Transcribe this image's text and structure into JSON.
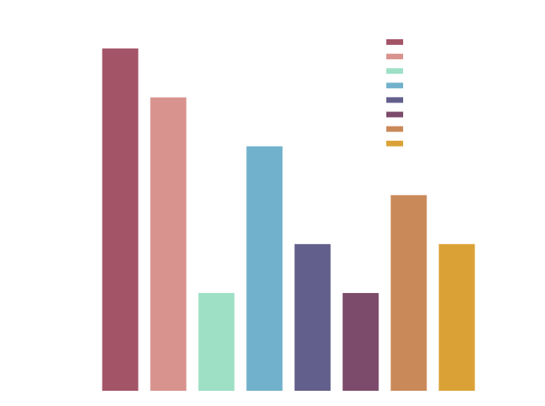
{
  "chart_data": {
    "type": "bar",
    "categories": [
      "",
      "",
      "",
      "",
      "",
      "",
      "",
      ""
    ],
    "values": [
      7,
      6,
      2,
      5,
      3,
      2,
      4,
      3
    ],
    "colors": [
      "#a45467",
      "#d9938f",
      "#9de0c6",
      "#72b1cb",
      "#635f8c",
      "#7c4a6a",
      "#ca8959",
      "#daa236"
    ],
    "ylim": [
      0,
      7.5
    ],
    "title": "",
    "xlabel": "",
    "ylabel": "",
    "grid": false,
    "legend_placement": "top-right"
  }
}
